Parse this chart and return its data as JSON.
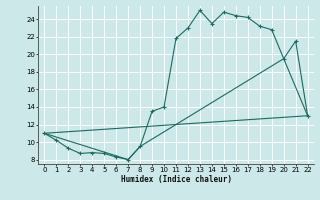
{
  "xlabel": "Humidex (Indice chaleur)",
  "xlim": [
    -0.5,
    22.5
  ],
  "ylim": [
    7.5,
    25.5
  ],
  "yticks": [
    8,
    10,
    12,
    14,
    16,
    18,
    20,
    22,
    24
  ],
  "xticks": [
    0,
    1,
    2,
    3,
    4,
    5,
    6,
    7,
    8,
    9,
    10,
    11,
    12,
    13,
    14,
    15,
    16,
    17,
    18,
    19,
    20,
    21,
    22
  ],
  "background_color": "#cce8e8",
  "grid_color": "#ffffff",
  "line_color": "#1a6b60",
  "line1_x": [
    0,
    1,
    2,
    3,
    4,
    5,
    6,
    7,
    8,
    9,
    10,
    11,
    12,
    13,
    14,
    15,
    16,
    17,
    18,
    19,
    20,
    21,
    22
  ],
  "line1_y": [
    11.0,
    10.2,
    9.3,
    8.7,
    8.8,
    8.7,
    8.3,
    8.0,
    9.5,
    13.5,
    14.0,
    21.8,
    23.0,
    25.0,
    23.5,
    24.8,
    24.4,
    24.2,
    23.2,
    22.8,
    19.5,
    21.5,
    13.0
  ],
  "line2_x": [
    0,
    22
  ],
  "line2_y": [
    11.0,
    13.0
  ],
  "line3_x": [
    0,
    7,
    8,
    20,
    22
  ],
  "line3_y": [
    11.0,
    8.0,
    9.5,
    19.5,
    13.0
  ]
}
